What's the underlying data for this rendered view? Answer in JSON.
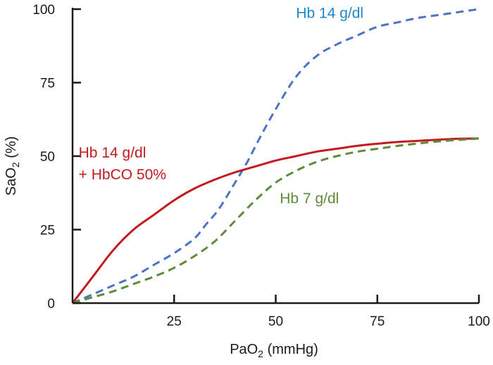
{
  "chart_data": {
    "type": "line",
    "xlabel_main": "PaO",
    "xlabel_sub": "2",
    "xlabel_rest": " (mmHg)",
    "ylabel_main": "SaO",
    "ylabel_sub": "2",
    "ylabel_rest": " (%)",
    "xlim": [
      0,
      100
    ],
    "ylim": [
      0,
      100
    ],
    "x_ticks": [
      25,
      50,
      75,
      100
    ],
    "x_tick_labels": [
      "25",
      "50",
      "75",
      "100"
    ],
    "y_ticks": [
      0,
      25,
      50,
      75,
      100
    ],
    "y_tick_labels": [
      "0",
      "25",
      "50",
      "75",
      "100"
    ],
    "grid": false,
    "series": [
      {
        "name": "Hb 14 g/dl",
        "color": "#4a74c4",
        "dash": true,
        "x": [
          0,
          5,
          10,
          15,
          20,
          25,
          30,
          33,
          36,
          40,
          43,
          46,
          50,
          55,
          60,
          65,
          70,
          75,
          80,
          85,
          90,
          95,
          100
        ],
        "y": [
          0,
          3,
          6,
          9,
          13,
          17,
          22,
          27,
          32,
          41,
          48,
          56,
          66,
          77,
          84,
          88,
          91,
          94,
          95.5,
          97,
          98,
          99,
          100
        ]
      },
      {
        "name": "Hb 14 g/dl + HbCO 50%",
        "color": "#c31a1f",
        "dash": false,
        "x": [
          0,
          5,
          10,
          15,
          20,
          25,
          30,
          35,
          40,
          45,
          50,
          55,
          60,
          65,
          70,
          75,
          80,
          85,
          90,
          95,
          100
        ],
        "y": [
          0,
          9,
          18,
          25,
          30,
          35,
          39,
          42,
          44.5,
          46.5,
          48.5,
          50,
          51.5,
          52.5,
          53.5,
          54.2,
          54.8,
          55.2,
          55.6,
          55.9,
          56
        ]
      },
      {
        "name": "Hb 7 g/dl",
        "color": "#5e8c38",
        "dash": true,
        "x": [
          0,
          5,
          10,
          15,
          20,
          25,
          30,
          35,
          40,
          45,
          50,
          55,
          60,
          65,
          70,
          75,
          80,
          85,
          90,
          95,
          100
        ],
        "y": [
          0,
          2,
          4,
          6.5,
          9,
          12,
          16,
          21,
          28,
          35,
          41,
          45,
          48,
          50,
          51.5,
          52.5,
          53.5,
          54.3,
          55,
          55.5,
          56
        ]
      }
    ],
    "annotations": [
      {
        "lines": [
          "Hb 14 g/dl"
        ],
        "color": "#1f86c8",
        "at": [
          55,
          97
        ]
      },
      {
        "lines": [
          "Hb 14 g/dl",
          "+ HbCO 50%"
        ],
        "color": "#c31a1f",
        "at": [
          1.5,
          49.5
        ]
      },
      {
        "lines": [
          "Hb 7 g/dl"
        ],
        "color": "#5e8c38",
        "at": [
          51,
          34
        ]
      }
    ]
  }
}
